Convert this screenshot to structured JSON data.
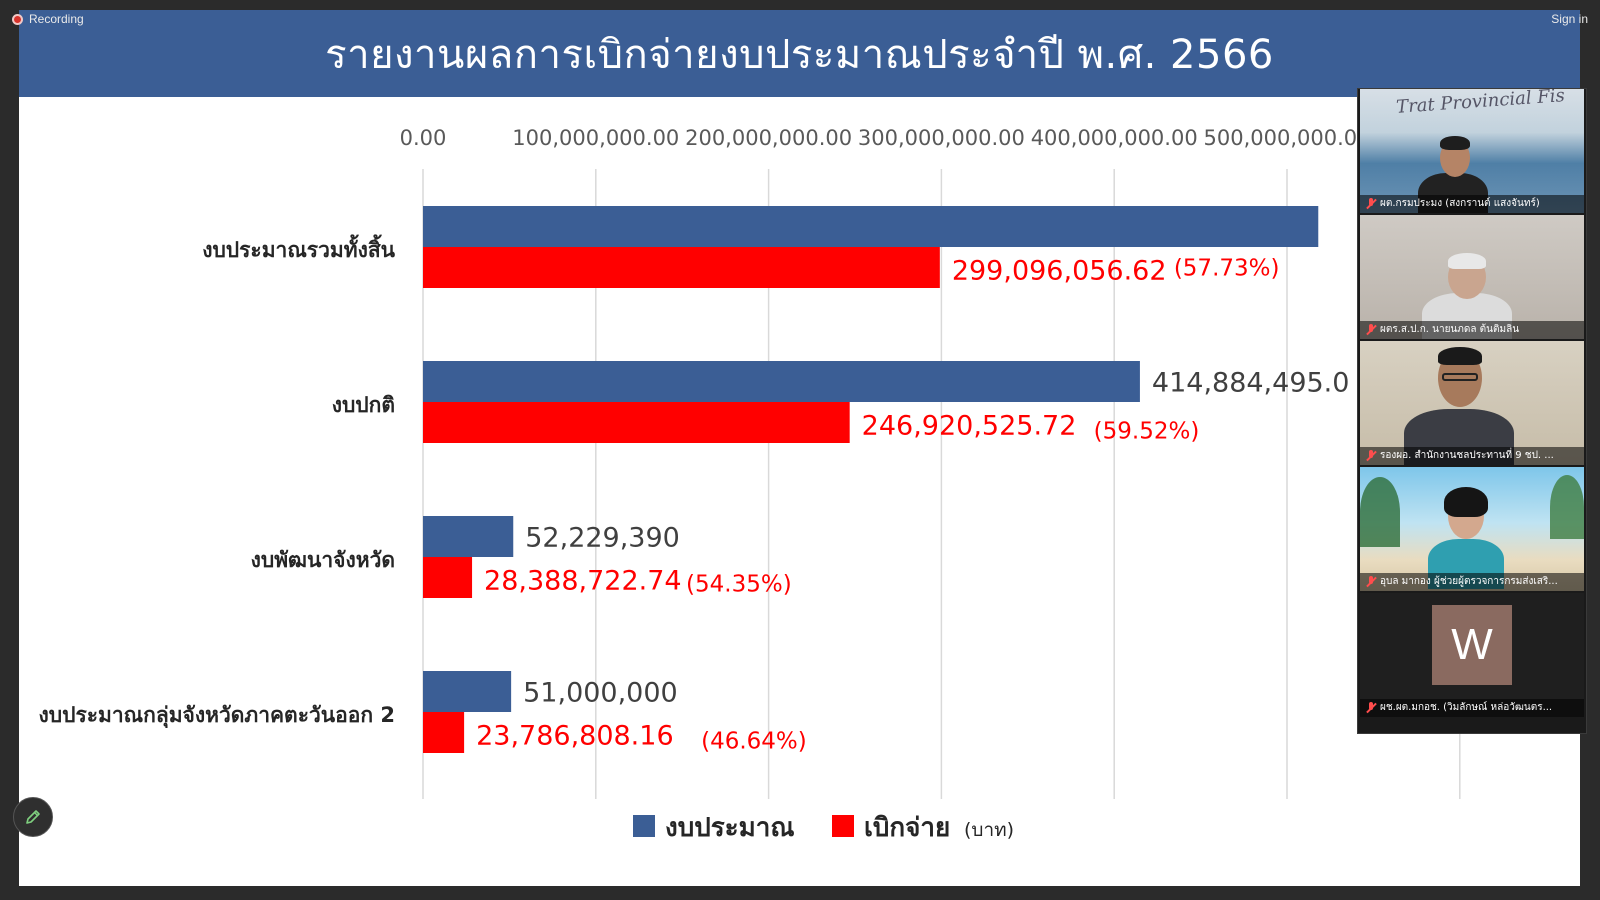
{
  "app": {
    "recording_label": "Recording",
    "sign_in_label": "Sign in"
  },
  "slide": {
    "title": "รายงานผลการเบิกจ่ายงบประมาณประจำปี พ.ศ. 2566"
  },
  "chart_data": {
    "type": "bar",
    "orientation": "horizontal",
    "title": "รายงานผลการเบิกจ่ายงบประมาณประจำปี พ.ศ. 2566",
    "categories": [
      "งบประมาณรวมทั้งสิ้น",
      "งบปกติ",
      "งบพัฒนาจังหวัด",
      "งบประมาณกลุ่มจังหวัดภาคตะวันออก 2"
    ],
    "series": [
      {
        "name": "งบประมาณ",
        "color": "#3b5e95",
        "values": [
          518100000,
          414884495,
          52229390,
          51000000
        ],
        "labels": [
          "",
          "414,884,495.0",
          "52,229,390",
          "51,000,000"
        ]
      },
      {
        "name": "เบิกจ่าย",
        "color": "#ff0000",
        "values": [
          299096056.62,
          246920525.72,
          28388722.74,
          23786808.16
        ],
        "labels": [
          "299,096,056.62",
          "246,920,525.72",
          "28,388,722.74",
          "23,786,808.16"
        ],
        "percent_labels": [
          "(57.73%)",
          "(59.52%)",
          "(54.35%)",
          "(46.64%)"
        ]
      }
    ],
    "xaxis": {
      "ticks": [
        0,
        100000000,
        200000000,
        300000000,
        400000000,
        500000000
      ],
      "tick_labels": [
        "0.00",
        "100,000,000.00",
        "200,000,000.00",
        "300,000,000.00",
        "400,000,000.00",
        "500,000,000.00"
      ],
      "position": "top",
      "range": [
        0,
        600000000
      ]
    },
    "grid": true,
    "legend": {
      "position": "bottom",
      "unit": "(บาท)"
    }
  },
  "participants": [
    {
      "caption": "ผต.กรมประมง (สงกรานต์ แสงจันทร์)",
      "mic": "muted-icon",
      "background_text": "Trat Provincial Fis"
    },
    {
      "caption": "ผตร.ส.ป.ก. นายนภดล ต้นติมลิน",
      "mic": "muted-icon"
    },
    {
      "caption": "รองผอ. สำนักงานชลประทานที่ 9 ชป. ...",
      "mic": "muted-icon"
    },
    {
      "caption": "อุบล มากอง   ผู้ช่วยผู้ตรวจการกรมส่งเสริ...",
      "mic": "muted-icon"
    },
    {
      "caption": "ผช.ผต.มกอช. (วิมลักษณ์ หล่อวัฒนตร...",
      "mic": "muted-icon",
      "avatar_letter": "W"
    }
  ]
}
